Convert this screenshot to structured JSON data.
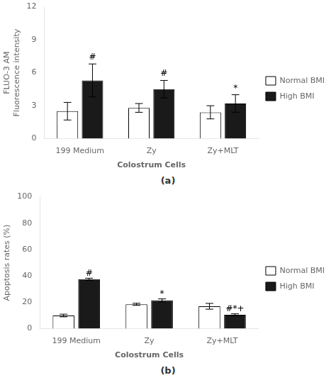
{
  "chart_data": [
    {
      "type": "bar",
      "categories": [
        "199 Medium",
        "Zy",
        "Zy+MLT"
      ],
      "series": [
        {
          "name": "Normal BMI",
          "color": "#ffffff",
          "values": [
            2.5,
            2.8,
            2.4
          ],
          "errors": [
            0.8,
            0.4,
            0.6
          ]
        },
        {
          "name": "High BMI",
          "color": "#1a1a1a",
          "values": [
            5.3,
            4.5,
            3.2
          ],
          "errors": [
            1.5,
            0.8,
            0.8
          ]
        }
      ],
      "ylabel": "FLUO-3 AM\nFluorescence intensity",
      "xlabel": "Colostrum Cells",
      "ylim": [
        0,
        12
      ],
      "yticks": [
        0,
        3,
        6,
        9,
        12
      ],
      "annotations": [
        {
          "text": "#",
          "category": "199 Medium",
          "series": "High BMI",
          "y": 7.0
        },
        {
          "text": "#",
          "category": "Zy",
          "series": "High BMI",
          "y": 5.5
        },
        {
          "text": "*",
          "category": "Zy+MLT",
          "series": "High BMI",
          "y": 4.2
        }
      ],
      "panel_label": "(a)",
      "legend": "right",
      "grid": false
    },
    {
      "type": "bar",
      "categories": [
        "199 Medium",
        "Zy",
        "Zy+MLT"
      ],
      "series": [
        {
          "name": "Normal BMI",
          "color": "#ffffff",
          "values": [
            10.0,
            18.5,
            17.0
          ],
          "errors": [
            1.0,
            0.8,
            2.2
          ]
        },
        {
          "name": "High BMI",
          "color": "#1a1a1a",
          "values": [
            37.5,
            21.5,
            10.5
          ],
          "errors": [
            0.8,
            1.2,
            0.8
          ]
        }
      ],
      "ylabel": "Apoptosis rates (%)",
      "xlabel": "Colostrum Cells",
      "ylim": [
        0,
        100
      ],
      "yticks": [
        0,
        20,
        40,
        60,
        80,
        100
      ],
      "annotations": [
        {
          "text": "#",
          "category": "199 Medium",
          "series": "High BMI",
          "y": 38.8
        },
        {
          "text": "*",
          "category": "Zy",
          "series": "High BMI",
          "y": 23.2
        },
        {
          "text": "#*+",
          "category": "Zy+MLT",
          "series": "High BMI",
          "y": 11.5
        }
      ],
      "panel_label": "(b)",
      "legend": "right",
      "grid": false
    }
  ]
}
